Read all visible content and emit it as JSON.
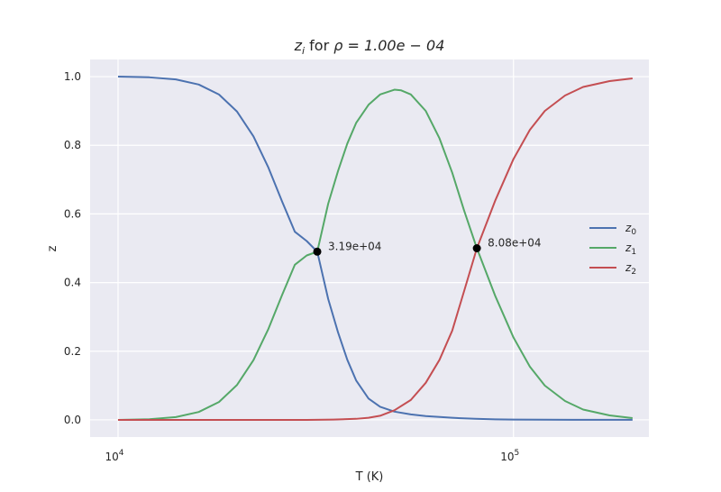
{
  "chart_data": {
    "type": "line",
    "title_prefix": "z",
    "title_prefix_sub": "i",
    "title_mid": " for ",
    "title_expr": "ρ = 1.00e − 04",
    "xlabel": "T (K)",
    "ylabel": "z",
    "xscale": "log",
    "xlim": [
      8500,
      220000
    ],
    "ylim": [
      -0.05,
      1.05
    ],
    "grid": true,
    "legend_position": "right",
    "x_ticks": [
      {
        "value": 10000,
        "base": "10",
        "exp": "4"
      },
      {
        "value": 100000,
        "base": "10",
        "exp": "5"
      }
    ],
    "y_ticks": [
      {
        "value": 0.0,
        "label": "0.0"
      },
      {
        "value": 0.2,
        "label": "0.2"
      },
      {
        "value": 0.4,
        "label": "0.4"
      },
      {
        "value": 0.6,
        "label": "0.6"
      },
      {
        "value": 0.8,
        "label": "0.8"
      },
      {
        "value": 1.0,
        "label": "1.0"
      }
    ],
    "x_range": [
      10000,
      200000
    ],
    "series": [
      {
        "name": "z",
        "sub": "0",
        "color": "#4c72b0",
        "x": [
          10000,
          12000,
          14000,
          16000,
          18000,
          20000,
          22000,
          24000,
          26000,
          28000,
          30000,
          31900,
          34000,
          36000,
          38000,
          40000,
          43000,
          46000,
          50000,
          55000,
          60000,
          70000,
          80000,
          90000,
          100000,
          120000,
          150000,
          200000
        ],
        "y": [
          1.0,
          0.998,
          0.992,
          0.977,
          0.948,
          0.898,
          0.826,
          0.735,
          0.636,
          0.548,
          0.521,
          0.49,
          0.352,
          0.255,
          0.175,
          0.115,
          0.062,
          0.038,
          0.024,
          0.016,
          0.011,
          0.006,
          0.003,
          0.0015,
          0.001,
          0.0005,
          0.0002,
          0.0001
        ]
      },
      {
        "name": "z",
        "sub": "1",
        "color": "#55a868",
        "x": [
          10000,
          12000,
          14000,
          16000,
          18000,
          20000,
          22000,
          24000,
          26000,
          28000,
          30000,
          31900,
          34000,
          36000,
          38000,
          40000,
          43000,
          46000,
          50000,
          52000,
          55000,
          60000,
          65000,
          70000,
          75000,
          80800,
          90000,
          100000,
          110000,
          120000,
          135000,
          150000,
          175000,
          200000
        ],
        "y": [
          0.0,
          0.002,
          0.008,
          0.023,
          0.052,
          0.102,
          0.174,
          0.265,
          0.364,
          0.452,
          0.479,
          0.49,
          0.63,
          0.725,
          0.805,
          0.865,
          0.918,
          0.948,
          0.962,
          0.96,
          0.948,
          0.9,
          0.82,
          0.72,
          0.61,
          0.5,
          0.36,
          0.24,
          0.155,
          0.1,
          0.055,
          0.03,
          0.013,
          0.005
        ]
      },
      {
        "name": "z",
        "sub": "2",
        "color": "#c44e52",
        "x": [
          10000,
          20000,
          30000,
          35000,
          40000,
          43000,
          46000,
          50000,
          55000,
          60000,
          65000,
          70000,
          75000,
          80800,
          90000,
          100000,
          110000,
          120000,
          135000,
          150000,
          175000,
          200000
        ],
        "y": [
          0.0,
          0.0,
          0.0,
          0.001,
          0.003,
          0.006,
          0.012,
          0.028,
          0.058,
          0.108,
          0.175,
          0.26,
          0.375,
          0.5,
          0.64,
          0.76,
          0.845,
          0.9,
          0.945,
          0.97,
          0.987,
          0.995
        ]
      }
    ],
    "annotations": [
      {
        "x": 31900,
        "y": 0.49,
        "label": "3.19e+04"
      },
      {
        "x": 80800,
        "y": 0.5,
        "label": "8.08e+04"
      }
    ]
  }
}
